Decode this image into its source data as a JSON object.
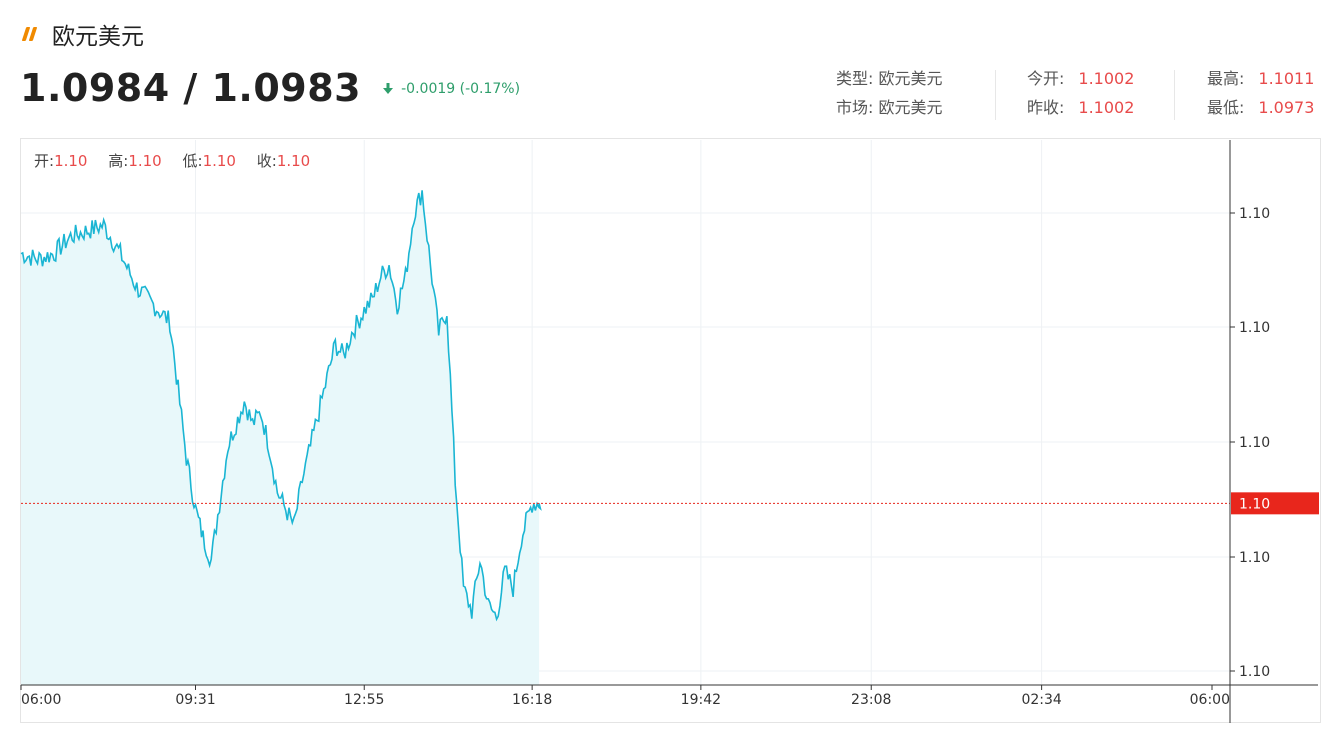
{
  "header": {
    "title": "欧元美元",
    "price": "1.0984 / 1.0983",
    "change": "-0.0019 (-0.17%)"
  },
  "info": {
    "type_label": "类型:",
    "type_value": "欧元美元",
    "market_label": "市场:",
    "market_value": "欧元美元",
    "open_label": "今开:",
    "open_value": "1.1002",
    "prev_close_label": "昨收:",
    "prev_close_value": "1.1002",
    "high_label": "最高:",
    "high_value": "1.1011",
    "low_label": "最低:",
    "low_value": "1.0973"
  },
  "ohlc": {
    "open_label": "开:",
    "open_value": "1.10",
    "high_label": "高:",
    "high_value": "1.10",
    "low_label": "低:",
    "low_value": "1.10",
    "close_label": "收:",
    "close_value": "1.10"
  },
  "colors": {
    "line": "#1ab5d3",
    "area": "#e8f8fa",
    "up": "#e84b4b",
    "down": "#2e9e6b",
    "current_price_tag": "#e8261c",
    "accent_icon": "#f08a00"
  },
  "chart_data": {
    "type": "area",
    "x_tick_labels": [
      "06:00",
      "09:31",
      "12:55",
      "16:18",
      "19:42",
      "23:08",
      "02:34",
      "06:00"
    ],
    "y_tick_labels": [
      "1.10",
      "1.10",
      "1.10",
      "1.10",
      "1.10"
    ],
    "current_price_label": "1.10",
    "current_price": 1.0984,
    "ylim": [
      1.0968,
      1.1016
    ],
    "grid": true,
    "series": [
      {
        "x": [
          "06:00",
          "06:20",
          "06:40",
          "07:00",
          "07:20",
          "07:40",
          "08:00",
          "08:10",
          "08:20",
          "08:40",
          "09:00",
          "09:10",
          "09:20",
          "09:31",
          "09:40",
          "09:50",
          "10:00",
          "10:10",
          "10:20",
          "10:30",
          "10:40",
          "10:50",
          "11:00",
          "11:10",
          "11:20",
          "11:30",
          "11:40",
          "11:50",
          "12:00",
          "12:10",
          "12:20",
          "12:30",
          "12:40",
          "12:55",
          "13:05",
          "13:15",
          "13:25",
          "13:35",
          "13:45",
          "13:55",
          "14:05",
          "14:15",
          "14:25",
          "14:35",
          "14:45",
          "14:55",
          "15:05",
          "15:15",
          "15:25",
          "15:35",
          "15:45",
          "15:55",
          "16:05",
          "16:18",
          "16:30"
        ],
        "values": [
          1.1006,
          1.10055,
          1.1006,
          1.10075,
          1.1008,
          1.10085,
          1.1006,
          1.10045,
          1.1003,
          1.10015,
          1.1,
          1.0994,
          1.0988,
          1.09835,
          1.0981,
          1.0979,
          1.0984,
          1.0989,
          1.0991,
          1.0993,
          1.0991,
          1.0992,
          1.0989,
          1.0985,
          1.09835,
          1.0982,
          1.0986,
          1.0989,
          1.0992,
          1.0995,
          1.0998,
          1.0997,
          1.0999,
          1.1001,
          1.1002,
          1.1004,
          1.1005,
          1.10015,
          1.1004,
          1.10095,
          1.10115,
          1.1005,
          1.0999,
          1.1001,
          1.0986,
          1.09765,
          1.09745,
          1.0979,
          1.0975,
          1.0974,
          1.0978,
          1.09765,
          1.0981,
          1.0984,
          1.0984
        ]
      }
    ]
  }
}
